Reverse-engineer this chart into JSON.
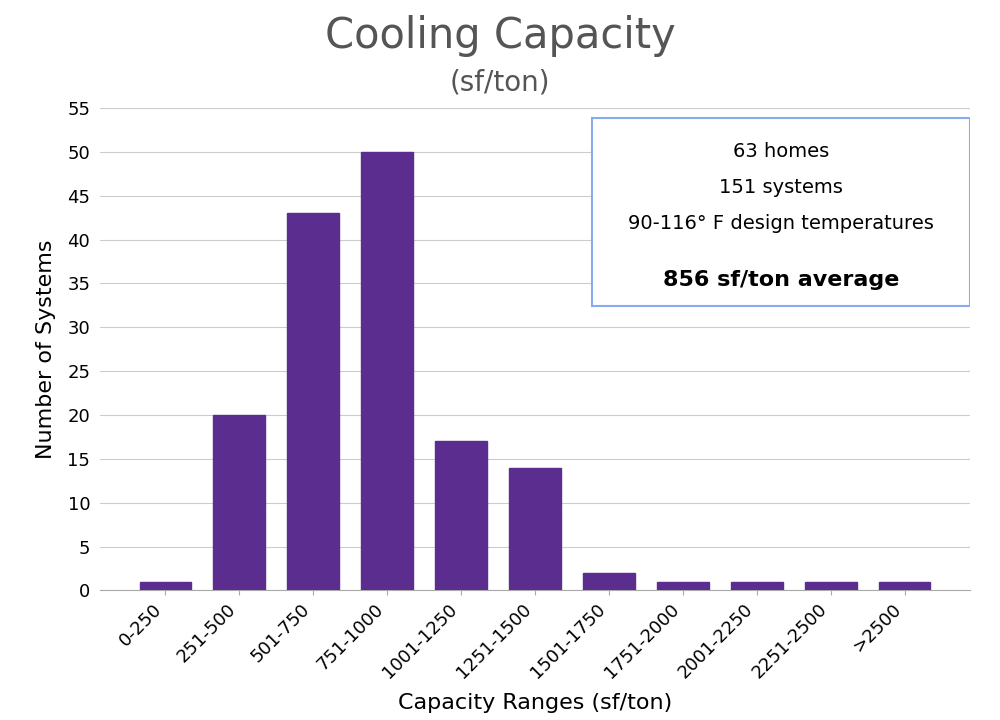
{
  "title": "Cooling Capacity",
  "subtitle": "(sf/ton)",
  "xlabel": "Capacity Ranges (sf/ton)",
  "ylabel": "Number of Systems",
  "categories": [
    "0-250",
    "251-500",
    "501-750",
    "751-1000",
    "1001-1250",
    "1251-1500",
    "1501-1750",
    "1751-2000",
    "2001-2250",
    "2251-2500",
    ">2500"
  ],
  "values": [
    1,
    20,
    43,
    50,
    17,
    14,
    2,
    1,
    1,
    1,
    1
  ],
  "bar_color": "#5B2D8E",
  "ylim": [
    0,
    55
  ],
  "yticks": [
    0,
    5,
    10,
    15,
    20,
    25,
    30,
    35,
    40,
    45,
    50,
    55
  ],
  "annotation_lines": [
    "63 homes",
    "151 systems",
    "90-116° F design temperatures",
    "856 sf/ton average"
  ],
  "annotation_bold_line": "856 sf/ton average",
  "title_fontsize": 30,
  "subtitle_fontsize": 20,
  "xlabel_fontsize": 16,
  "ylabel_fontsize": 16,
  "tick_fontsize": 13,
  "annotation_fontsize": 14,
  "plot_bg_color": "#ffffff",
  "title_color": "#555555",
  "grid_color": "#cccccc",
  "box_edge_color": "#88aaee"
}
